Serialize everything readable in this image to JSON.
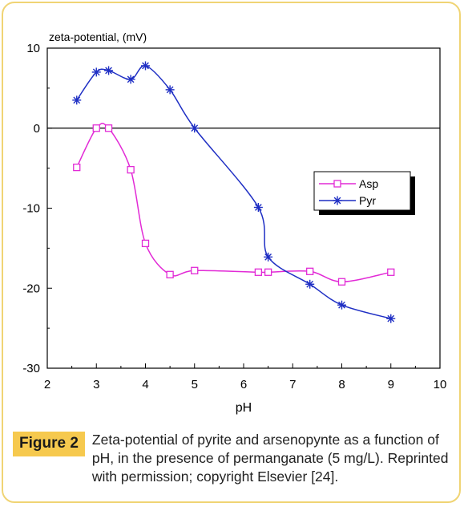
{
  "colors": {
    "asp": "#e22bd6",
    "pyr": "#1f2fc4",
    "frame_border": "#f0d474",
    "figure_label_bg": "#f6c94e"
  },
  "chart_data": {
    "type": "scatter",
    "ylabel": "zeta-potential, (mV)",
    "xlabel": "pH",
    "xlim": [
      2,
      10
    ],
    "ylim": [
      -30,
      10
    ],
    "x_ticks": [
      "2",
      "3",
      "4",
      "5",
      "6",
      "7",
      "8",
      "9",
      "10"
    ],
    "y_ticks": [
      "10",
      "0",
      "-10",
      "-20",
      "-30"
    ],
    "zero_line": true,
    "grid": false,
    "legend_position": "right-middle",
    "series": [
      {
        "name": "Asp",
        "marker": "square",
        "color_key": "asp",
        "points": [
          {
            "x": 2.6,
            "y": -4.9
          },
          {
            "x": 3.0,
            "y": 0.0
          },
          {
            "x": 3.25,
            "y": 0.0
          },
          {
            "x": 3.7,
            "y": -5.2
          },
          {
            "x": 4.0,
            "y": -14.4
          },
          {
            "x": 4.5,
            "y": -18.3
          },
          {
            "x": 5.0,
            "y": -17.8
          },
          {
            "x": 6.3,
            "y": -18.0
          },
          {
            "x": 6.5,
            "y": -18.0
          },
          {
            "x": 7.35,
            "y": -17.9
          },
          {
            "x": 8.0,
            "y": -19.2
          },
          {
            "x": 9.0,
            "y": -18.0
          }
        ]
      },
      {
        "name": "Pyr",
        "marker": "star",
        "color_key": "pyr",
        "points": [
          {
            "x": 2.6,
            "y": 3.5
          },
          {
            "x": 3.0,
            "y": 7.0
          },
          {
            "x": 3.25,
            "y": 7.2
          },
          {
            "x": 3.7,
            "y": 6.1
          },
          {
            "x": 4.0,
            "y": 7.8
          },
          {
            "x": 4.5,
            "y": 4.8
          },
          {
            "x": 5.0,
            "y": 0.0
          },
          {
            "x": 6.3,
            "y": -9.9
          },
          {
            "x": 6.5,
            "y": -16.1
          },
          {
            "x": 7.35,
            "y": -19.5
          },
          {
            "x": 8.0,
            "y": -22.1
          },
          {
            "x": 9.0,
            "y": -23.8
          }
        ]
      }
    ]
  },
  "caption": {
    "label": "Figure 2",
    "text": "Zeta-potential of pyrite and arsenopynte as a function of pH, in the presence of permanganate (5 mg/L). Reprinted with permission; copyright Elsevier [24]."
  }
}
